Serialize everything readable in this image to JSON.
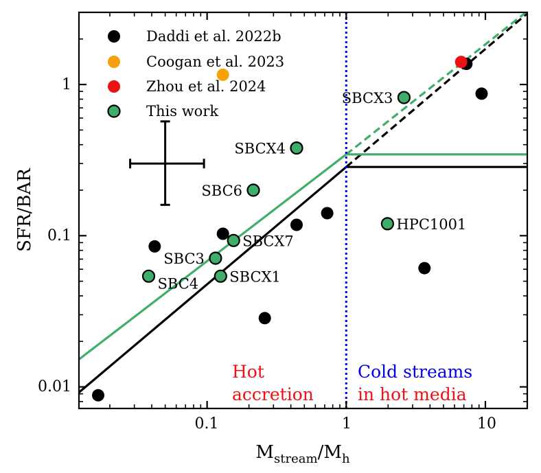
{
  "chart_data": {
    "type": "scatter",
    "xscale": "log",
    "yscale": "log",
    "xlim": [
      0.012,
      20
    ],
    "ylim": [
      0.0072,
      3.0
    ],
    "x_ticks": [
      {
        "value": 0.1,
        "label": "0.1"
      },
      {
        "value": 1,
        "label": "1"
      },
      {
        "value": 10,
        "label": "10"
      }
    ],
    "y_ticks": [
      {
        "value": 0.01,
        "label": "0.01"
      },
      {
        "value": 0.1,
        "label": "0.1"
      },
      {
        "value": 1,
        "label": "1"
      }
    ],
    "xlabel": {
      "main": "M",
      "sub1": "stream",
      "slash": "/M",
      "sub2": "h"
    },
    "ylabel": "SFR/BAR",
    "colors": {
      "daddi": "#000000",
      "coogan": "#f5a20a",
      "zhou": "#ee1111",
      "this_work": "#3fae6b",
      "this_work_edge": "#000000",
      "model_black": "#000000",
      "model_green": "#3fae6b",
      "divider": "#0000ee",
      "hot_label": "#ee1111",
      "cold_label_1": "#0000ee",
      "cold_label_2": "#ee1111"
    },
    "series": [
      {
        "name": "Daddi et al. 2022b",
        "key": "daddi",
        "points": [
          {
            "x": 0.0165,
            "y": 0.0088
          },
          {
            "x": 0.042,
            "y": 0.085
          },
          {
            "x": 0.13,
            "y": 0.103
          },
          {
            "x": 0.26,
            "y": 0.0285
          },
          {
            "x": 0.44,
            "y": 0.118
          },
          {
            "x": 0.73,
            "y": 0.141
          },
          {
            "x": 3.65,
            "y": 0.061
          },
          {
            "x": 7.3,
            "y": 1.37
          },
          {
            "x": 9.4,
            "y": 0.87
          }
        ]
      },
      {
        "name": "Coogan et al. 2023",
        "key": "coogan",
        "points": [
          {
            "x": 0.13,
            "y": 1.16
          }
        ]
      },
      {
        "name": "Zhou et al. 2024",
        "key": "zhou",
        "points": [
          {
            "x": 6.7,
            "y": 1.41
          }
        ]
      },
      {
        "name": "This work",
        "key": "this_work",
        "points": [
          {
            "x": 2.6,
            "y": 0.82,
            "label": "SBCX3",
            "anchor": "end",
            "dx": -16,
            "dy": 8
          },
          {
            "x": 0.44,
            "y": 0.38,
            "label": "SBCX4",
            "anchor": "end",
            "dx": -16,
            "dy": 8
          },
          {
            "x": 0.215,
            "y": 0.2,
            "label": "SBC6",
            "anchor": "end",
            "dx": -16,
            "dy": 8
          },
          {
            "x": 1.98,
            "y": 0.12,
            "label": "HPC1001",
            "anchor": "start",
            "dx": 13,
            "dy": 8
          },
          {
            "x": 0.155,
            "y": 0.093,
            "label": "SBCX7",
            "anchor": "start",
            "dx": 13,
            "dy": 8
          },
          {
            "x": 0.115,
            "y": 0.071,
            "label": "SBC3",
            "anchor": "end",
            "dx": -16,
            "dy": 8
          },
          {
            "x": 0.038,
            "y": 0.054,
            "label": "SBC4",
            "anchor": "start",
            "dx": 13,
            "dy": 18
          },
          {
            "x": 0.125,
            "y": 0.054,
            "label": "SBCX1",
            "anchor": "start",
            "dx": 13,
            "dy": 8
          }
        ]
      }
    ],
    "lines": [
      {
        "name": "model-black-solid",
        "color": "model_black",
        "style": "solid",
        "points": [
          [
            0.012,
            0.0092
          ],
          [
            1,
            0.285
          ],
          [
            20,
            0.285
          ]
        ]
      },
      {
        "name": "model-black-dashed",
        "color": "model_black",
        "style": "dashed",
        "points": [
          [
            1,
            0.285
          ],
          [
            20,
            2.95
          ]
        ]
      },
      {
        "name": "model-green-solid",
        "color": "model_green",
        "style": "solid",
        "points": [
          [
            0.012,
            0.0152
          ],
          [
            1,
            0.345
          ],
          [
            20,
            0.345
          ]
        ]
      },
      {
        "name": "model-green-dashed",
        "color": "model_green",
        "style": "dashed",
        "points": [
          [
            1,
            0.345
          ],
          [
            20,
            3.05
          ]
        ]
      },
      {
        "name": "vertical-divider",
        "color": "divider",
        "style": "dotted",
        "points": [
          [
            1,
            0.0072
          ],
          [
            1,
            3.0
          ]
        ]
      }
    ],
    "error_bar": {
      "x": 0.05,
      "y": 0.3,
      "xlo": 0.028,
      "xhi": 0.095,
      "ylo": 0.16,
      "yhi": 0.57
    },
    "region_labels": {
      "hot": [
        "Hot",
        "accretion"
      ],
      "cold_1": "Cold streams",
      "cold_2": "in hot media"
    },
    "legend": {
      "position": "top-left",
      "entries": [
        {
          "label": "Daddi et al. 2022b",
          "key": "daddi"
        },
        {
          "label": "Coogan et al. 2023",
          "key": "coogan"
        },
        {
          "label": "Zhou et al. 2024",
          "key": "zhou"
        },
        {
          "label": "This work",
          "key": "this_work"
        }
      ]
    }
  }
}
